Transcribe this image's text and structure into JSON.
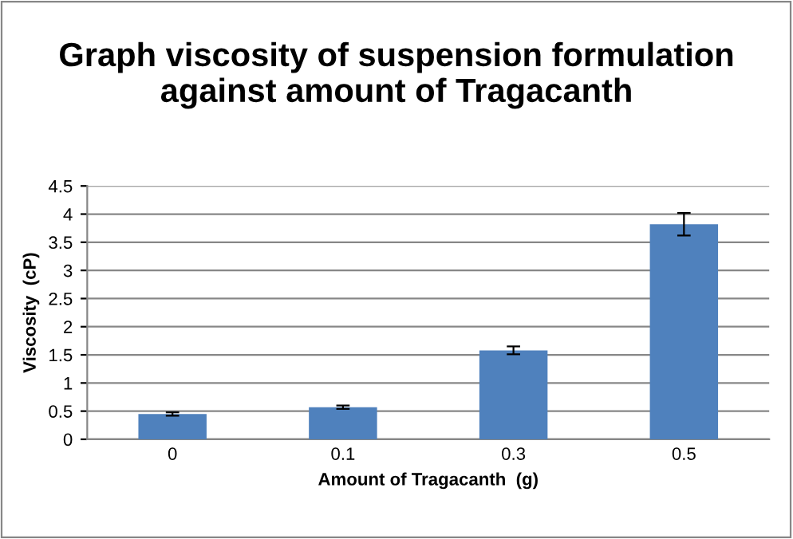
{
  "chart_data": {
    "type": "bar",
    "title": "Graph viscosity of suspension formulation against amount of Tragacanth",
    "xlabel": "Amount of Tragacanth  (g)",
    "ylabel": "Viscosity  (cP)",
    "categories": [
      "0",
      "0.1",
      "0.3",
      "0.5"
    ],
    "values": [
      0.45,
      0.57,
      1.58,
      3.82
    ],
    "errors": [
      0.03,
      0.03,
      0.07,
      0.2
    ],
    "color": "#4f81bd",
    "ylim": [
      0,
      4.5
    ],
    "yticks": [
      0,
      0.5,
      1,
      1.5,
      2,
      2.5,
      3,
      3.5,
      4,
      4.5
    ],
    "grid": "y"
  }
}
